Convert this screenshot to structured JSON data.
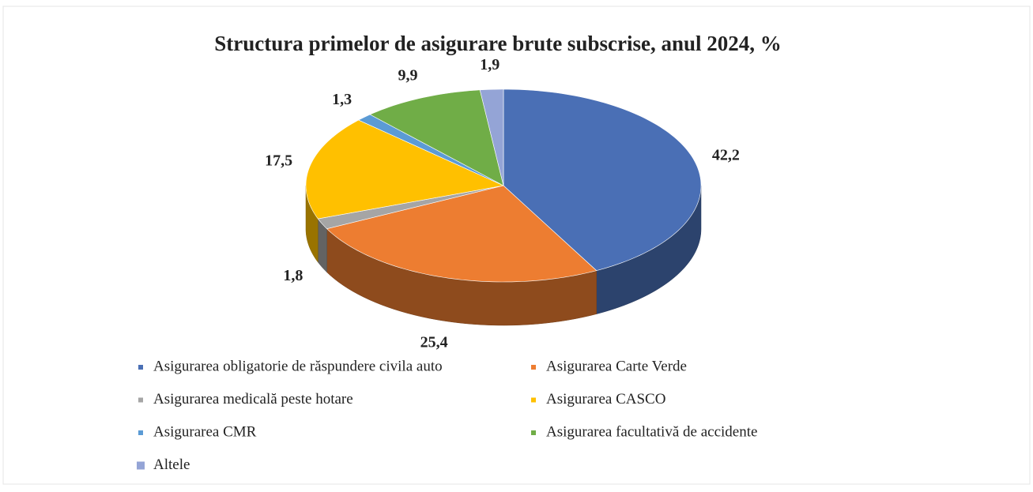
{
  "chart_data": {
    "type": "pie",
    "title": "Structura primelor de asigurare brute subscrise, anul 2024, %",
    "categories": [
      "Asigurarea obligatorie de răspundere civila auto",
      "Asigurarea Carte Verde",
      "Asigurarea medicală peste hotare",
      "Asigurarea CASCO",
      "Asigurarea CMR",
      "Asigurarea facultativă de accidente",
      "Altele"
    ],
    "values": [
      42.2,
      25.4,
      1.8,
      17.5,
      1.3,
      9.9,
      1.9
    ],
    "value_labels": [
      "42,2",
      "25,4",
      "1,8",
      "17,5",
      "1,3",
      "9,9",
      "1,9"
    ],
    "colors": [
      "#4a6fb5",
      "#ed7d31",
      "#a5a5a5",
      "#ffc000",
      "#5b9bd5",
      "#70ad47",
      "#94a4d6"
    ],
    "legend": "bottom"
  }
}
